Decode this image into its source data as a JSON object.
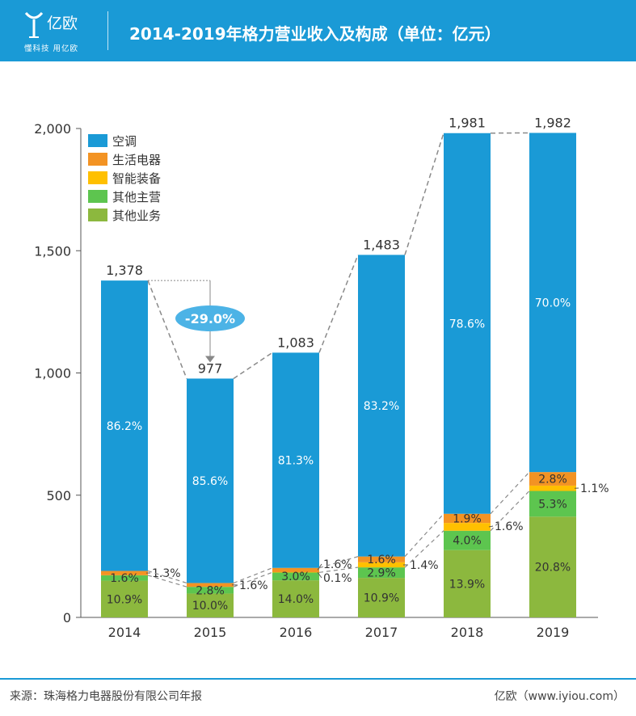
{
  "header": {
    "logo_text": "亿欧",
    "tagline": "懂科技 用亿欧",
    "title": "2014-2019年格力营业收入及构成（单位：亿元）"
  },
  "footer": {
    "source": "来源：珠海格力电器股份有限公司年报",
    "brand": "亿欧（www.iyiou.com）"
  },
  "colors": {
    "header_bg": "#1a9ad6",
    "ac": "#1a9ad6",
    "appliance": "#f39323",
    "smart": "#ffc000",
    "other_main": "#5dc54f",
    "other_biz": "#8cb83e"
  },
  "chart_data": {
    "type": "bar",
    "stacked": true,
    "title": "2014-2019年格力营业收入及构成（单位：亿元）",
    "categories": [
      "2014",
      "2015",
      "2016",
      "2017",
      "2018",
      "2019"
    ],
    "totals": [
      1378,
      977,
      1083,
      1483,
      1981,
      1982
    ],
    "total_labels": [
      "1,378",
      "977",
      "1,083",
      "1,483",
      "1,981",
      "1,982"
    ],
    "ylim": [
      0,
      2000
    ],
    "yticks": [
      0,
      500,
      1000,
      1500,
      2000
    ],
    "ytick_labels": [
      "0",
      "500",
      "1,000",
      "1,500",
      "2,000"
    ],
    "legend_position": "top-left",
    "series": [
      {
        "name": "其他业务",
        "color": "#8cb83e",
        "percent": [
          10.9,
          10.0,
          14.0,
          10.9,
          13.9,
          20.8
        ],
        "labels": [
          "10.9%",
          "10.0%",
          "14.0%",
          "10.9%",
          "13.9%",
          "20.8%"
        ]
      },
      {
        "name": "其他主营",
        "color": "#5dc54f",
        "percent": [
          1.6,
          2.8,
          3.0,
          2.9,
          4.0,
          5.3
        ],
        "labels": [
          "1.6%",
          "2.8%",
          "3.0%",
          "2.9%",
          "4.0%",
          "5.3%"
        ]
      },
      {
        "name": "智能装备",
        "color": "#ffc000",
        "percent": [
          0,
          0,
          0.1,
          1.4,
          1.6,
          1.1
        ],
        "labels": [
          "",
          "",
          "0.1%",
          "1.4%",
          "1.6%",
          "1.1%"
        ]
      },
      {
        "name": "生活电器",
        "color": "#f39323",
        "percent": [
          1.3,
          1.6,
          1.6,
          1.6,
          1.9,
          2.8
        ],
        "labels": [
          "1.3%",
          "1.6%",
          "1.6%",
          "1.6%",
          "1.9%",
          "2.8%"
        ]
      },
      {
        "name": "空调",
        "color": "#1a9ad6",
        "percent": [
          86.2,
          85.6,
          81.3,
          83.2,
          78.6,
          70.0
        ],
        "labels": [
          "86.2%",
          "85.6%",
          "81.3%",
          "83.2%",
          "78.6%",
          "70.0%"
        ]
      }
    ],
    "legend_order": [
      "空调",
      "生活电器",
      "智能装备",
      "其他主营",
      "其他业务"
    ],
    "annotation": {
      "text": "-29.0%",
      "from": "2014",
      "to": "2015"
    }
  }
}
